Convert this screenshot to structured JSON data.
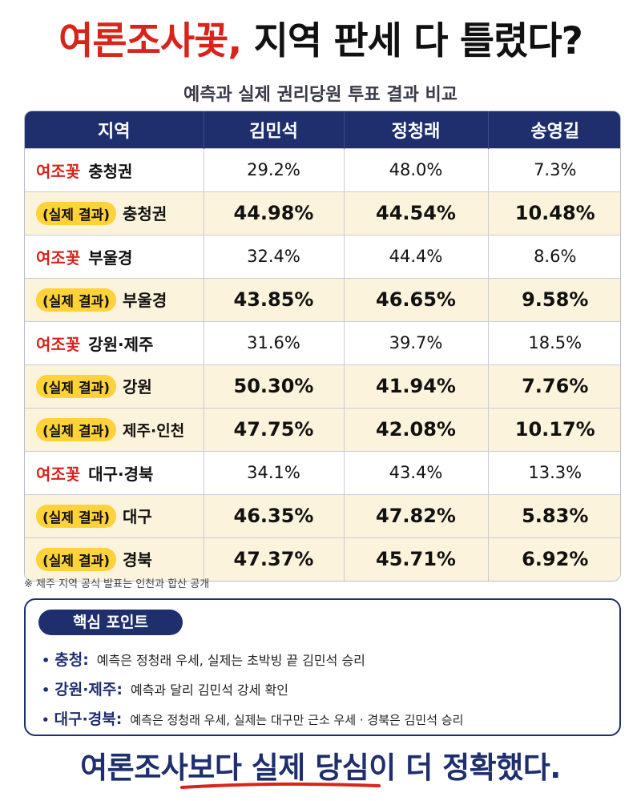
{
  "title": {
    "part1": "여론조사꽃,",
    "part2": "지역 판세 다 틀렸다?"
  },
  "subtitle": "예측과 실제 권리당원 투표 결과 비교",
  "table": {
    "headers": [
      "지역",
      "김민석",
      "정청래",
      "송영길"
    ],
    "rows": [
      {
        "type": "survey",
        "tag": "여조꽃",
        "region": "충청권",
        "values": [
          "29.2%",
          "48.0%",
          "7.3%"
        ]
      },
      {
        "type": "actual",
        "tag": "(실제 결과)",
        "region": "충청권",
        "values": [
          "44.98%",
          "44.54%",
          "10.48%"
        ]
      },
      {
        "type": "survey",
        "tag": "여조꽃",
        "region": "부울경",
        "values": [
          "32.4%",
          "44.4%",
          "8.6%"
        ]
      },
      {
        "type": "actual",
        "tag": "(실제 결과)",
        "region": "부울경",
        "values": [
          "43.85%",
          "46.65%",
          "9.58%"
        ]
      },
      {
        "type": "survey",
        "tag": "여조꽃",
        "region": "강원·제주",
        "values": [
          "31.6%",
          "39.7%",
          "18.5%"
        ]
      },
      {
        "type": "actual",
        "tag": "(실제 결과)",
        "region": "강원",
        "values": [
          "50.30%",
          "41.94%",
          "7.76%"
        ]
      },
      {
        "type": "actual",
        "tag": "(실제 결과)",
        "region": "제주·인천",
        "values": [
          "47.75%",
          "42.08%",
          "10.17%"
        ]
      },
      {
        "type": "survey",
        "tag": "여조꽃",
        "region": "대구·경북",
        "values": [
          "34.1%",
          "43.4%",
          "13.3%"
        ]
      },
      {
        "type": "actual",
        "tag": "(실제 결과)",
        "region": "대구",
        "values": [
          "46.35%",
          "47.82%",
          "5.83%"
        ]
      },
      {
        "type": "actual",
        "tag": "(실제 결과)",
        "region": "경북",
        "values": [
          "47.37%",
          "45.71%",
          "6.92%"
        ]
      }
    ]
  },
  "footnote": "※ 제주 지역 공식 발표는 인천과 합산 공개",
  "points": {
    "title": "핵심 포인트",
    "items": [
      {
        "key": "충청:",
        "text": "예측은 정청래 우세, 실제는 초박빙 끝 김민석 승리"
      },
      {
        "key": "강원·제주:",
        "text": "예측과 달리 김민석 강세 확인"
      },
      {
        "key": "대구·경북:",
        "text": "예측은 정청래 우세, 실제는 대구만 근소 우세 · 경북은 김민석 승리"
      }
    ]
  },
  "conclusion": "여론조사보다 실제 당심이 더 정확했다.",
  "colors": {
    "navy": "#1f2f6e",
    "red": "#d9241b",
    "yellow": "#ffd23a",
    "actual_row_bg": "#fbf3dc"
  }
}
